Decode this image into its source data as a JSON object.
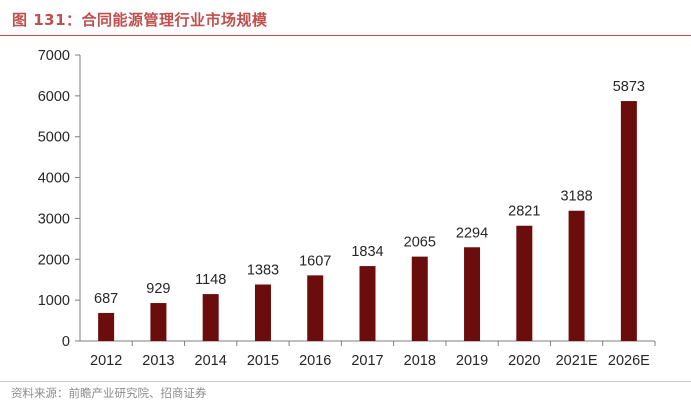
{
  "figure": {
    "title": "图 131：合同能源管理行业市场规模",
    "source": "资料来源：前瞻产业研究院、招商证券"
  },
  "colors": {
    "bar": "#6b0d0d",
    "title": "#c0504d",
    "axis": "#7f7f7f",
    "text": "#262626"
  },
  "chart_data": {
    "type": "bar",
    "title": "",
    "xlabel": "",
    "ylabel": "",
    "categories": [
      "2012",
      "2013",
      "2014",
      "2015",
      "2016",
      "2017",
      "2018",
      "2019",
      "2020",
      "2021E",
      "2026E"
    ],
    "values": [
      687,
      929,
      1148,
      1383,
      1607,
      1834,
      2065,
      2294,
      2821,
      3188,
      5873
    ],
    "data_labels": [
      "687",
      "929",
      "1148",
      "1383",
      "1607",
      "1834",
      "2065",
      "2294",
      "2821",
      "3188",
      "5873"
    ],
    "ylim": [
      0,
      7000
    ],
    "yticks": [
      0,
      1000,
      2000,
      3000,
      4000,
      5000,
      6000,
      7000
    ],
    "ytick_labels": [
      "0",
      "1000",
      "2000",
      "3000",
      "4000",
      "5000",
      "6000",
      "7000"
    ],
    "grid": false,
    "legend": "none"
  }
}
